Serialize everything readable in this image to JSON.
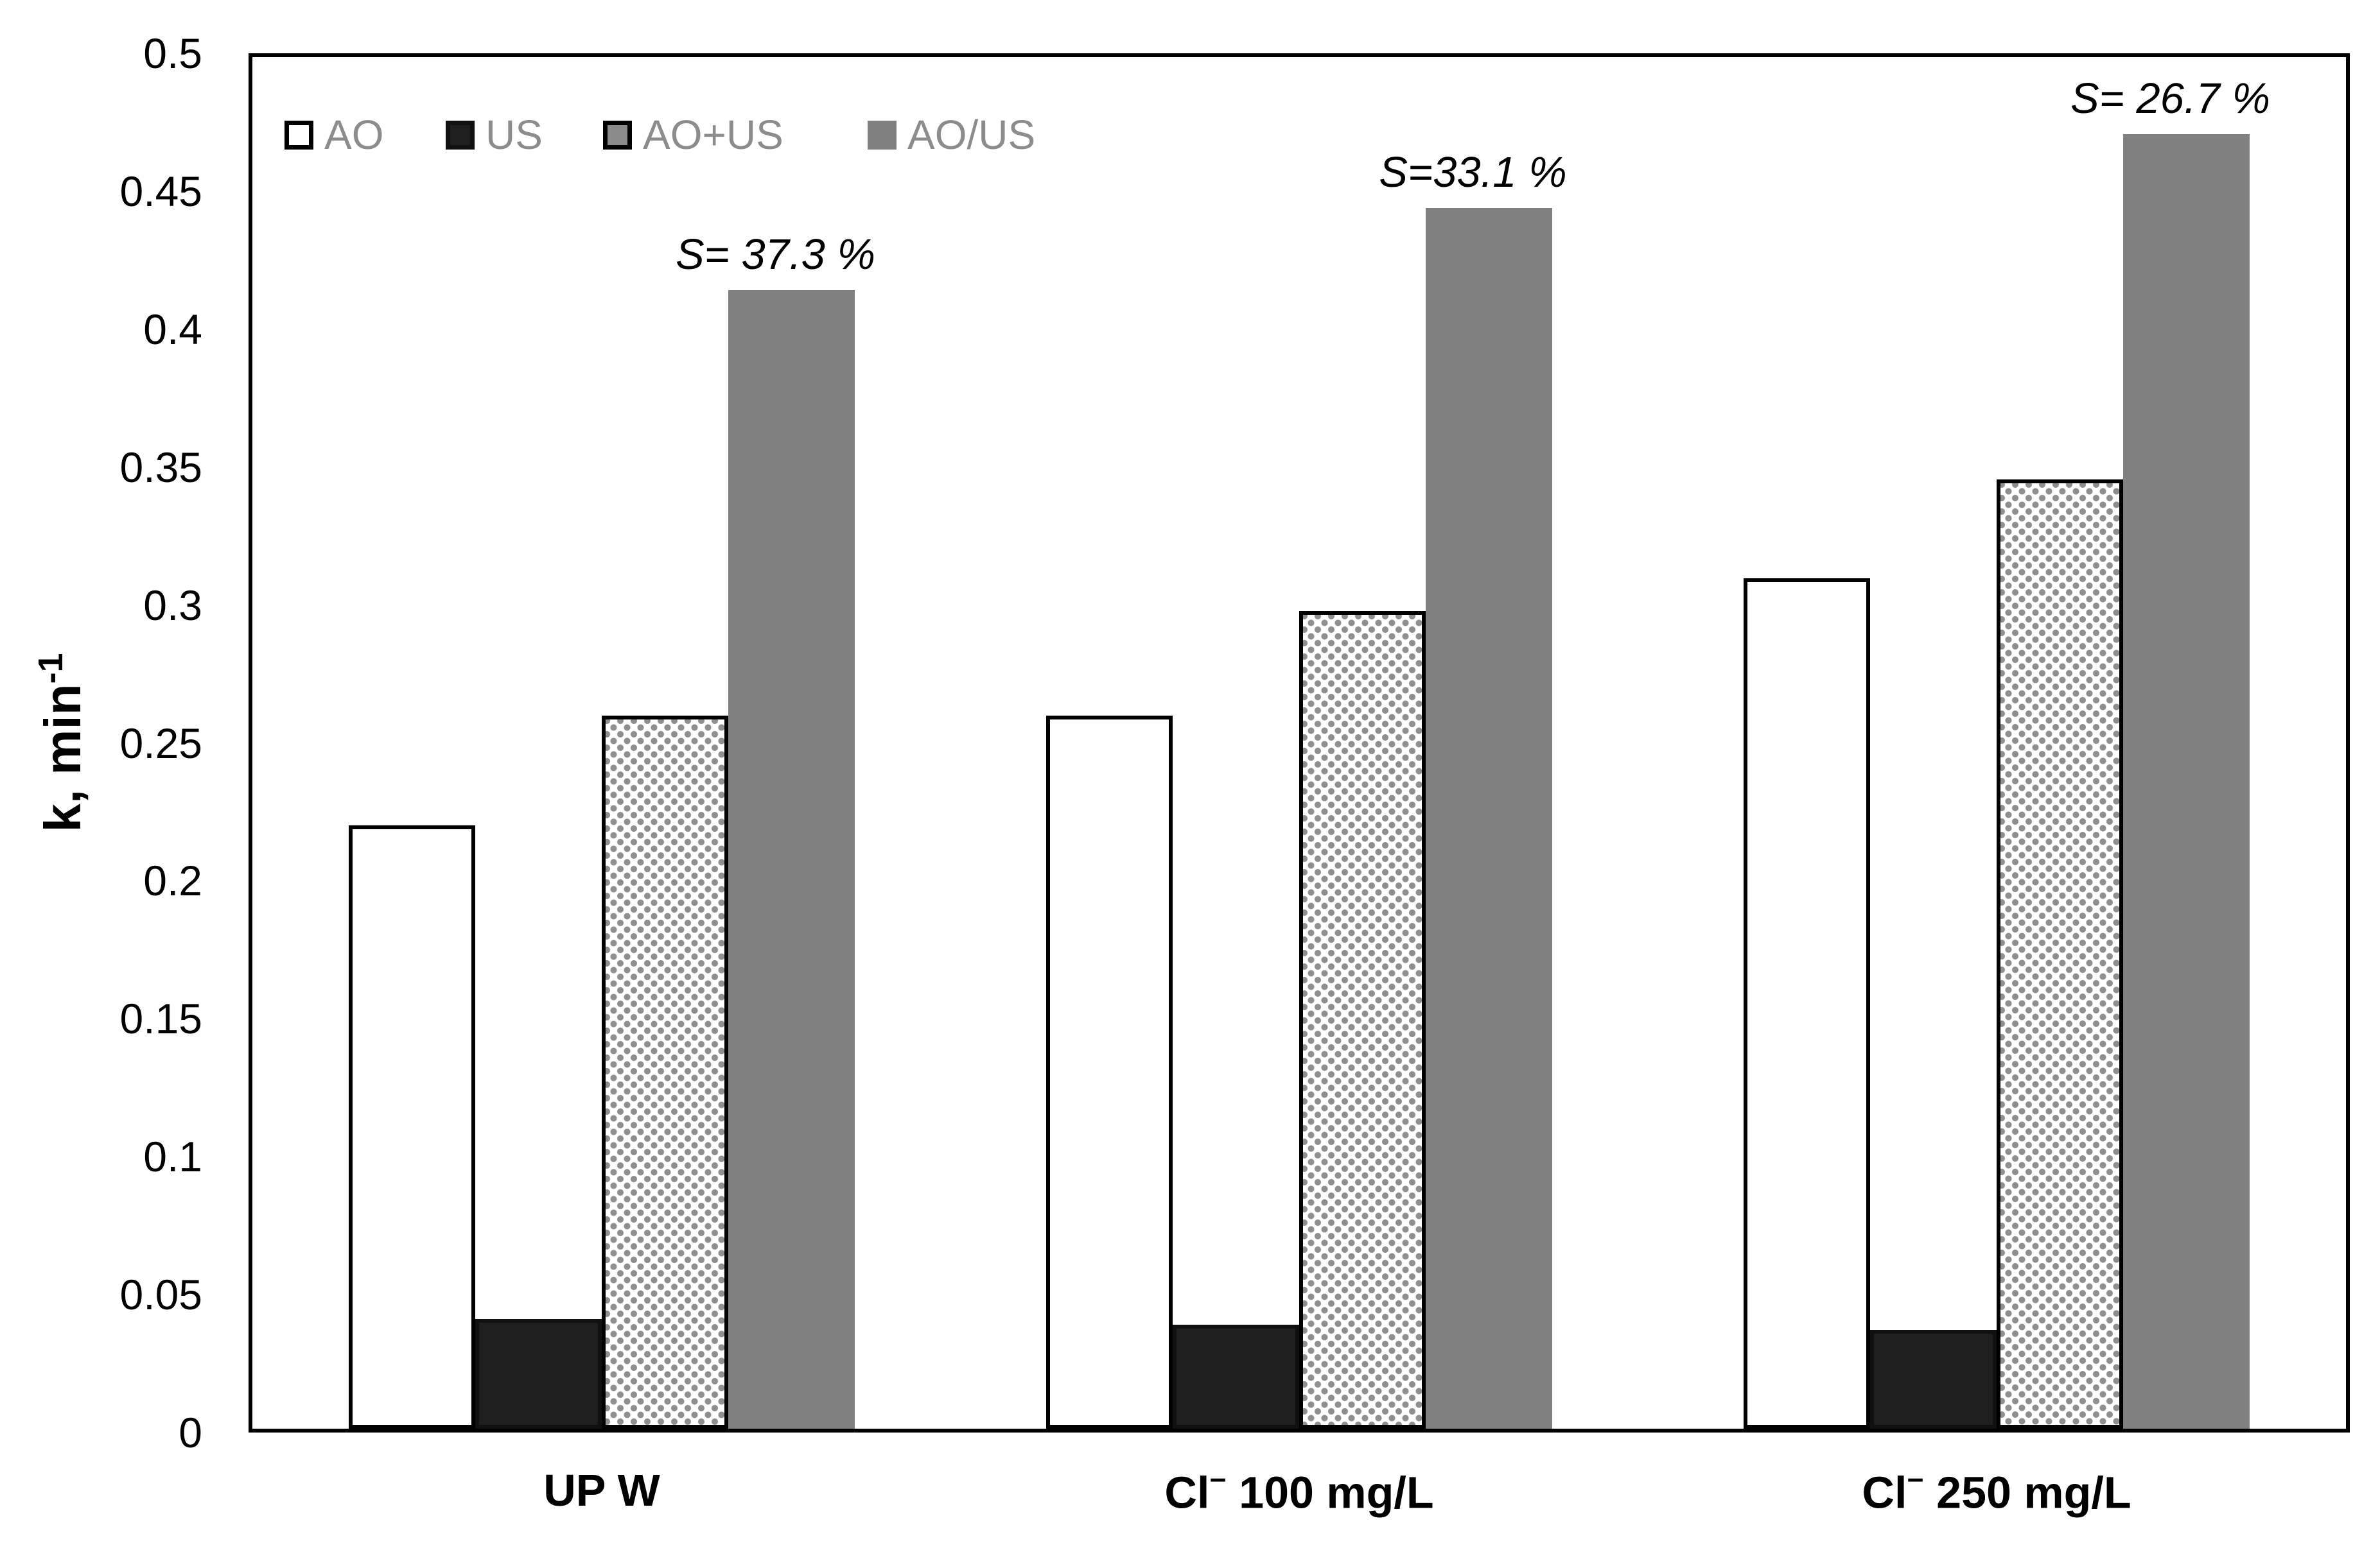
{
  "colors": {
    "axis": "#000000",
    "bar_white": "#ffffff",
    "bar_black": "#1e1e1e",
    "bar_gray": "#808080",
    "pattern_dot_gray": "#8f8f8f",
    "legend_text": "#8c8c8c",
    "annotation_text": "#000000"
  },
  "y_axis": {
    "title_main": "k, min",
    "title_sup": "-1",
    "tick_labels": [
      "0",
      "0.05",
      "0.1",
      "0.15",
      "0.2",
      "0.25",
      "0.3",
      "0.35",
      "0.4",
      "0.45",
      "0.5"
    ]
  },
  "chart_data": {
    "type": "bar",
    "title": "",
    "xlabel": "",
    "ylabel": "k, min⁻¹",
    "ylim": [
      0,
      0.5
    ],
    "ytick_step": 0.05,
    "grid": false,
    "legend_position": "top-left-inside",
    "categories": [
      {
        "label": "UP W",
        "parts": [
          {
            "t": "UP W"
          }
        ]
      },
      {
        "label": "Cl⁻ 100 mg/L",
        "parts": [
          {
            "t": "Cl"
          },
          {
            "t": "−",
            "sup": true
          },
          {
            "t": " 100 mg/L"
          }
        ]
      },
      {
        "label": "Cl⁻ 250 mg/L",
        "parts": [
          {
            "t": "Cl"
          },
          {
            "t": "−",
            "sup": true
          },
          {
            "t": " 250 mg/L"
          }
        ]
      }
    ],
    "series": [
      {
        "name": "AO",
        "style": "white",
        "values": [
          0.22,
          0.26,
          0.31
        ]
      },
      {
        "name": "US",
        "style": "black",
        "values": [
          0.04,
          0.038,
          0.036
        ]
      },
      {
        "name": "AO+US",
        "style": "dotted",
        "values": [
          0.26,
          0.298,
          0.346
        ]
      },
      {
        "name": "AO/US",
        "style": "gray",
        "values": [
          0.415,
          0.445,
          0.472
        ]
      }
    ],
    "annotations": [
      {
        "text": "S= 37.3 %",
        "group": 0,
        "above_series": "AO/US"
      },
      {
        "text": "S=33.1 %",
        "group": 1,
        "above_series": "AO/US"
      },
      {
        "text": "S= 26.7 %",
        "group": 2,
        "above_series": "AO/US"
      }
    ]
  }
}
